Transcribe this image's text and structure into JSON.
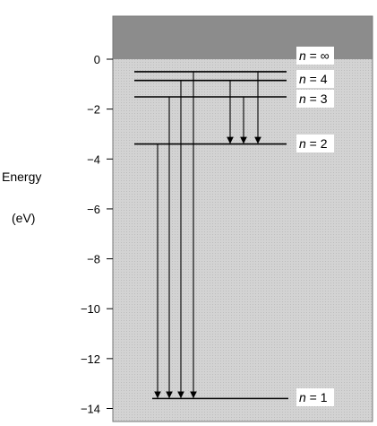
{
  "axis": {
    "ylabel_line1": "Energy",
    "ylabel_line2": "(eV)",
    "ylim": [
      -14.5,
      1.8
    ],
    "ticks": [
      0,
      -2,
      -4,
      -6,
      -8,
      -10,
      -12,
      -14
    ],
    "tick_labels": [
      "0",
      "−2",
      "−4",
      "−6",
      "−8",
      "−10",
      "−12",
      "−14"
    ]
  },
  "colors": {
    "continuum": "#8c8c8c",
    "bound_region": "#d3d3d3",
    "line": "#000000",
    "label_bg": "#ffffff"
  },
  "chart_data": {
    "type": "energy-level diagram",
    "levels": [
      {
        "n_label": "n",
        "value_label": "∞",
        "energy": 0
      },
      {
        "n_label": "n",
        "value_label": "4",
        "energy": -0.85
      },
      {
        "n_label": "n",
        "value_label": "3",
        "energy": -1.51
      },
      {
        "n_label": "n",
        "value_label": "2",
        "energy": -3.4
      },
      {
        "n_label": "n",
        "value_label": "1",
        "energy": -13.6
      }
    ],
    "transitions": [
      {
        "from": -3.4,
        "to": -13.6
      },
      {
        "from": -1.51,
        "to": -13.6
      },
      {
        "from": -0.85,
        "to": -13.6
      },
      {
        "from": -0.5,
        "to": -13.6
      },
      {
        "from": -0.85,
        "to": -3.4
      },
      {
        "from": -1.51,
        "to": -3.4
      },
      {
        "from": -0.5,
        "to": -3.4
      }
    ]
  }
}
